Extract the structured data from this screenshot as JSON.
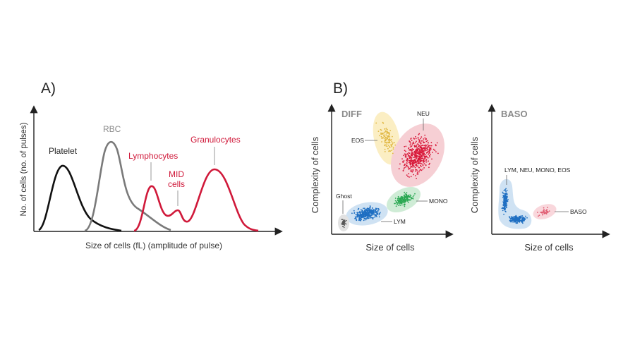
{
  "panel_a": {
    "letter": "A)",
    "y_axis_label": "No. of cells (no. of pulses)",
    "x_axis_label": "Size of cells (fL) (amplitude of pulse)",
    "labels": {
      "platelet": "Platelet",
      "rbc": "RBC",
      "lymphocytes": "Lymphocytes",
      "mid_line1": "MID",
      "mid_line2": "cells",
      "granulocytes": "Granulocytes"
    }
  },
  "panel_b": {
    "letter": "B)",
    "diff": {
      "title": "DIFF",
      "x_axis_label": "Size of cells",
      "y_axis_label": "Complexity of cells",
      "labels": {
        "eos": "EOS",
        "neu": "NEU",
        "mono": "MONO",
        "ghost": "Ghost",
        "lym": "LYM"
      }
    },
    "baso": {
      "title": "BASO",
      "x_axis_label": "Size of cells",
      "y_axis_label": "Complexity of cells",
      "labels": {
        "lym_group": "LYM, NEU, MONO, EOS",
        "baso": "BASO"
      }
    }
  },
  "colors": {
    "black_curve": "#111111",
    "rbc_curve": "#7a7a7a",
    "red_curve": "#d0193a",
    "red_text": "#d0193a",
    "gray_text": "#8a8a8a",
    "eos_dots": "#e0b640",
    "eos_fill": "#fbeec3",
    "neu_dots": "#d8193a",
    "neu_fill": "#f6cfd4",
    "mono_dots": "#2aa852",
    "mono_fill": "#cfecd6",
    "lym_dots": "#1f6fc2",
    "lym_fill": "#cfe2f3",
    "ghost_dots": "#555555",
    "ghost_fill": "#e2e2e2",
    "baso_dots": "#e05a70",
    "baso_fill": "#f9d7dc"
  }
}
